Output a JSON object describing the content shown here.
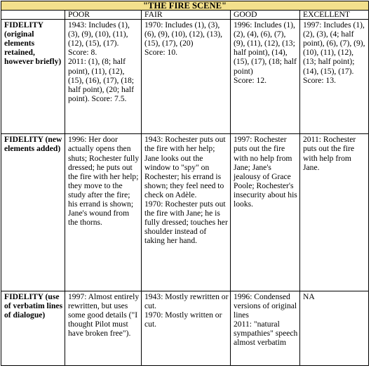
{
  "table": {
    "title": "\"THE FIRE SCENE\"",
    "columns": [
      "",
      "POOR",
      "FAIR",
      "GOOD",
      "EXCELLENT"
    ],
    "rows": [
      {
        "label": "FIDELITY (original elements retained, however briefly)",
        "cells": [
          [
            "1943: Includes (1), (3), (9), (10), (11), (12), (15), (17). Score: 8.",
            "2011: (1), (8; half point), (11), (12), (15), (16), (17), (18; half point), (20; half point). Score: 7.5."
          ],
          [
            "1970: Includes (1), (3), (6), (9), (10), (12), (13), (15), (17), (20)",
            "Score: 10."
          ],
          [
            "1996: Includes (1), (2), (4), (6), (7), (9), (11), (12), (13; half point), (14), (15), (17), (18; half point)",
            "Score: 12."
          ],
          [
            "1997: Includes (1), (2), (3), (4; half point), (6), (7), (9), (10), (11), (12), (13; half point); (14), (15), (17).",
            "Score: 13."
          ]
        ]
      },
      {
        "label": "FIDELITY (new elements added)",
        "cells": [
          [
            "1996: Her door actually opens then shuts; Rochester fully dressed; he puts out the fire with her help; they move to the study after the fire; his errand is shown; Jane's wound from the thorns."
          ],
          [
            "1943: Rochester puts out the fire with her help; Jane looks out the window to \"spy\" on Rochester; his errand is shown; they feel need to check on Adèle.",
            "1970: Rochester puts out the fire with Jane; he is fully dressed; touches her shoulder instead of taking her hand."
          ],
          [
            "1997: Rochester puts out the fire with no help from Jane; Jane's jealousy of Grace Poole; Rochester's insecurity about his looks."
          ],
          [
            "2011: Rochester puts out the fire with help from Jane."
          ]
        ]
      },
      {
        "label": "FIDELITY (use of verbatim lines of dialogue)",
        "cells": [
          [
            "1997: Almost entirely rewritten, but uses some good details (\"I thought Pilot must have broken free\")."
          ],
          [
            "1943: Mostly rewritten or cut.",
            "1970: Mostly written or cut."
          ],
          [
            "1996: Condensed versions of original lines",
            "2011: \"natural sympathies\" speech almost verbatim"
          ],
          [
            "NA"
          ]
        ]
      }
    ]
  }
}
